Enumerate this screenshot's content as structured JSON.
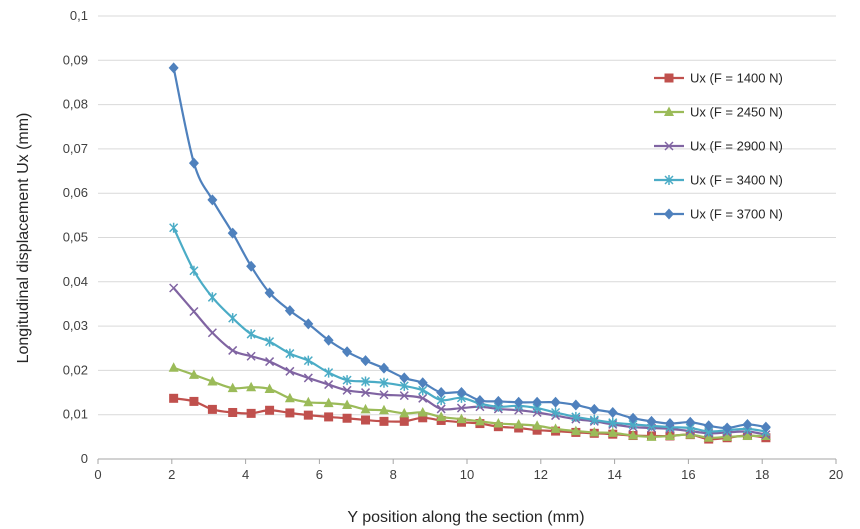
{
  "chart_data": {
    "type": "line",
    "xlabel": "Y position along the section (mm)",
    "ylabel": "Longitudinal displacement Ux (mm)",
    "xlim": [
      0,
      20
    ],
    "ylim": [
      0,
      0.1
    ],
    "x_ticks": [
      "0",
      "2",
      "4",
      "6",
      "8",
      "10",
      "12",
      "14",
      "16",
      "18",
      "20"
    ],
    "y_ticks": [
      "0",
      "0,01",
      "0,02",
      "0,03",
      "0,04",
      "0,05",
      "0,06",
      "0,07",
      "0,08",
      "0,09",
      "0,1"
    ],
    "grid": "horizontal",
    "legend_position": "right",
    "x": [
      2.05,
      2.6,
      3.1,
      3.65,
      4.15,
      4.65,
      5.2,
      5.7,
      6.25,
      6.75,
      7.25,
      7.75,
      8.3,
      8.8,
      9.3,
      9.85,
      10.35,
      10.85,
      11.4,
      11.9,
      12.4,
      12.95,
      13.45,
      13.95,
      14.5,
      15.0,
      15.5,
      16.05,
      16.55,
      17.05,
      17.6,
      18.1
    ],
    "series": [
      {
        "name": "Ux (F = 1400 N)",
        "color": "#c0504d",
        "marker": "square",
        "values": [
          0.0137,
          0.013,
          0.0112,
          0.0105,
          0.0103,
          0.011,
          0.0104,
          0.0099,
          0.0095,
          0.0092,
          0.0088,
          0.0085,
          0.0085,
          0.0093,
          0.0087,
          0.0083,
          0.008,
          0.0073,
          0.007,
          0.0065,
          0.0063,
          0.006,
          0.0058,
          0.0056,
          0.0053,
          0.0052,
          0.0052,
          0.0055,
          0.0045,
          0.0048,
          0.0053,
          0.0048
        ]
      },
      {
        "name": "Ux (F = 2450 N)",
        "color": "#9bbb59",
        "marker": "triangle",
        "values": [
          0.0206,
          0.019,
          0.0175,
          0.016,
          0.0162,
          0.0158,
          0.0137,
          0.0128,
          0.0126,
          0.0122,
          0.0112,
          0.011,
          0.0103,
          0.0105,
          0.0095,
          0.009,
          0.0085,
          0.008,
          0.0078,
          0.0075,
          0.0068,
          0.0063,
          0.006,
          0.0059,
          0.0053,
          0.005,
          0.0052,
          0.0055,
          0.0048,
          0.005,
          0.0052,
          0.0052
        ]
      },
      {
        "name": "Ux (F = 2900 N)",
        "color": "#8064a2",
        "marker": "x",
        "values": [
          0.0386,
          0.0333,
          0.0285,
          0.0245,
          0.0232,
          0.022,
          0.0198,
          0.0183,
          0.0168,
          0.0155,
          0.015,
          0.0145,
          0.0143,
          0.0137,
          0.0113,
          0.0115,
          0.0118,
          0.0113,
          0.011,
          0.0105,
          0.0098,
          0.009,
          0.0085,
          0.0078,
          0.0072,
          0.007,
          0.0068,
          0.0063,
          0.0058,
          0.006,
          0.0062,
          0.0055
        ]
      },
      {
        "name": "Ux (F = 3400 N)",
        "color": "#4bacc6",
        "marker": "star",
        "values": [
          0.0522,
          0.0425,
          0.0365,
          0.0318,
          0.0282,
          0.0265,
          0.0238,
          0.0222,
          0.0195,
          0.0178,
          0.0175,
          0.0172,
          0.0165,
          0.0155,
          0.0133,
          0.0138,
          0.0125,
          0.0118,
          0.012,
          0.0115,
          0.0105,
          0.0095,
          0.0088,
          0.0082,
          0.0078,
          0.0075,
          0.0072,
          0.007,
          0.0062,
          0.0065,
          0.0068,
          0.0062
        ]
      },
      {
        "name": "Ux (F = 3700 N)",
        "color": "#4f81bd",
        "marker": "diamond",
        "values": [
          0.0883,
          0.0668,
          0.0585,
          0.051,
          0.0435,
          0.0375,
          0.0335,
          0.0305,
          0.0268,
          0.0242,
          0.0222,
          0.0205,
          0.0183,
          0.0172,
          0.015,
          0.015,
          0.0132,
          0.013,
          0.0128,
          0.0128,
          0.0128,
          0.0122,
          0.0112,
          0.0105,
          0.0092,
          0.0085,
          0.008,
          0.0083,
          0.0075,
          0.007,
          0.0078,
          0.0072
        ]
      }
    ]
  }
}
